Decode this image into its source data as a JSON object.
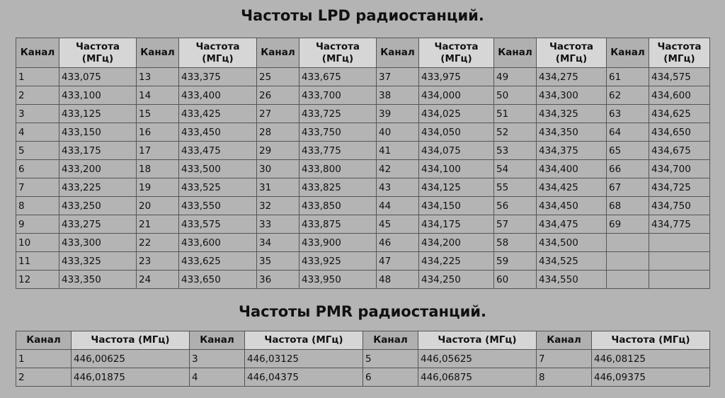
{
  "lpd": {
    "title": "Частоты LPD радиостанций.",
    "header_channel": "Канал",
    "header_freq_line1": "Частота",
    "header_freq_line2": "(МГц)",
    "rows": [
      [
        [
          "1",
          "433,075"
        ],
        [
          "13",
          "433,375"
        ],
        [
          "25",
          "433,675"
        ],
        [
          "37",
          "433,975"
        ],
        [
          "49",
          "434,275"
        ],
        [
          "61",
          "434,575"
        ]
      ],
      [
        [
          "2",
          "433,100"
        ],
        [
          "14",
          "433,400"
        ],
        [
          "26",
          "433,700"
        ],
        [
          "38",
          "434,000"
        ],
        [
          "50",
          "434,300"
        ],
        [
          "62",
          "434,600"
        ]
      ],
      [
        [
          "3",
          "433,125"
        ],
        [
          "15",
          "433,425"
        ],
        [
          "27",
          "433,725"
        ],
        [
          "39",
          "434,025"
        ],
        [
          "51",
          "434,325"
        ],
        [
          "63",
          "434,625"
        ]
      ],
      [
        [
          "4",
          "433,150"
        ],
        [
          "16",
          "433,450"
        ],
        [
          "28",
          "433,750"
        ],
        [
          "40",
          "434,050"
        ],
        [
          "52",
          "434,350"
        ],
        [
          "64",
          "434,650"
        ]
      ],
      [
        [
          "5",
          "433,175"
        ],
        [
          "17",
          "433,475"
        ],
        [
          "29",
          "433,775"
        ],
        [
          "41",
          "434,075"
        ],
        [
          "53",
          "434,375"
        ],
        [
          "65",
          "434,675"
        ]
      ],
      [
        [
          "6",
          "433,200"
        ],
        [
          "18",
          "433,500"
        ],
        [
          "30",
          "433,800"
        ],
        [
          "42",
          "434,100"
        ],
        [
          "54",
          "434,400"
        ],
        [
          "66",
          "434,700"
        ]
      ],
      [
        [
          "7",
          "433,225"
        ],
        [
          "19",
          "433,525"
        ],
        [
          "31",
          "433,825"
        ],
        [
          "43",
          "434,125"
        ],
        [
          "55",
          "434,425"
        ],
        [
          "67",
          "434,725"
        ]
      ],
      [
        [
          "8",
          "433,250"
        ],
        [
          "20",
          "433,550"
        ],
        [
          "32",
          "433,850"
        ],
        [
          "44",
          "434,150"
        ],
        [
          "56",
          "434,450"
        ],
        [
          "68",
          "434,750"
        ]
      ],
      [
        [
          "9",
          "433,275"
        ],
        [
          "21",
          "433,575"
        ],
        [
          "33",
          "433,875"
        ],
        [
          "45",
          "434,175"
        ],
        [
          "57",
          "434,475"
        ],
        [
          "69",
          "434,775"
        ]
      ],
      [
        [
          "10",
          "433,300"
        ],
        [
          "22",
          "433,600"
        ],
        [
          "34",
          "433,900"
        ],
        [
          "46",
          "434,200"
        ],
        [
          "58",
          "434,500"
        ],
        [
          "",
          ""
        ]
      ],
      [
        [
          "11",
          "433,325"
        ],
        [
          "23",
          "433,625"
        ],
        [
          "35",
          "433,925"
        ],
        [
          "47",
          "434,225"
        ],
        [
          "59",
          "434,525"
        ],
        [
          "",
          ""
        ]
      ],
      [
        [
          "12",
          "433,350"
        ],
        [
          "24",
          "433,650"
        ],
        [
          "36",
          "433,950"
        ],
        [
          "48",
          "434,250"
        ],
        [
          "60",
          "434,550"
        ],
        [
          "",
          ""
        ]
      ]
    ]
  },
  "pmr": {
    "title": "Частоты PMR радиостанций.",
    "header_channel": "Канал",
    "header_freq": "Частота (МГц)",
    "rows": [
      [
        [
          "1",
          "446,00625"
        ],
        [
          "3",
          "446,03125"
        ],
        [
          "5",
          "446,05625"
        ],
        [
          "7",
          "446,08125"
        ]
      ],
      [
        [
          "2",
          "446,01875"
        ],
        [
          "4",
          "446,04375"
        ],
        [
          "6",
          "446,06875"
        ],
        [
          "8",
          "446,09375"
        ]
      ]
    ]
  }
}
